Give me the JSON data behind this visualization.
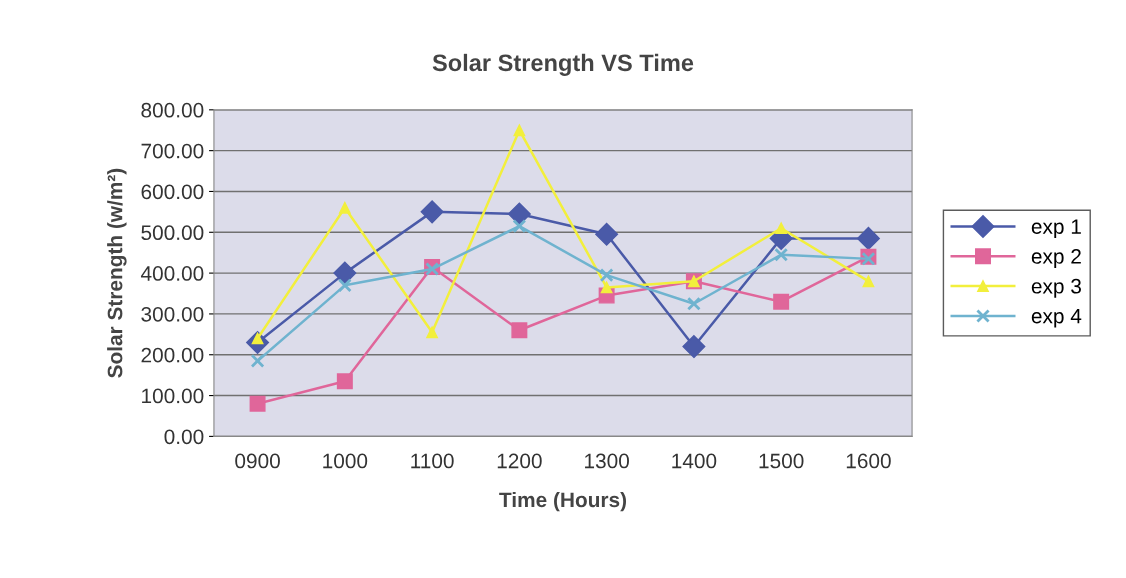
{
  "chart_data": {
    "type": "line",
    "title": "Solar Strength VS Time",
    "xlabel": "Time (Hours)",
    "ylabel": "Solar Strength (w/m²)",
    "categories": [
      "0900",
      "1000",
      "1100",
      "1200",
      "1300",
      "1400",
      "1500",
      "1600"
    ],
    "series": [
      {
        "name": "exp 1",
        "color": "#4a5aa8",
        "marker": "diamond",
        "values": [
          230,
          400,
          550,
          545,
          495,
          220,
          485,
          485
        ]
      },
      {
        "name": "exp 2",
        "color": "#e0669a",
        "marker": "square",
        "values": [
          80,
          135,
          415,
          260,
          345,
          380,
          330,
          440
        ]
      },
      {
        "name": "exp 3",
        "color": "#f2ef3c",
        "marker": "triangle",
        "values": [
          240,
          560,
          255,
          750,
          365,
          380,
          510,
          380
        ]
      },
      {
        "name": "exp 4",
        "color": "#6fb3cf",
        "marker": "cross",
        "values": [
          185,
          370,
          410,
          515,
          395,
          325,
          445,
          435
        ]
      }
    ],
    "ylim": [
      0,
      800
    ],
    "yticks": [
      {
        "value": 0,
        "label": "0.00"
      },
      {
        "value": 100,
        "label": "100.00"
      },
      {
        "value": 200,
        "label": "200.00"
      },
      {
        "value": 300,
        "label": "300.00"
      },
      {
        "value": 400,
        "label": "400.00"
      },
      {
        "value": 500,
        "label": "500.00"
      },
      {
        "value": 600,
        "label": "600.00"
      },
      {
        "value": 700,
        "label": "700.00"
      },
      {
        "value": 800,
        "label": "800.00"
      }
    ],
    "grid": "y",
    "legend": "right",
    "line_style": "solid"
  }
}
